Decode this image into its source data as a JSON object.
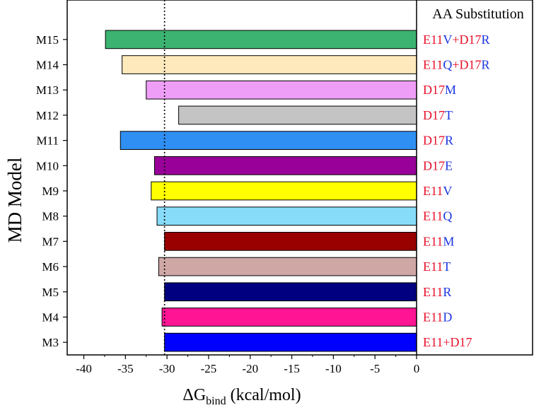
{
  "chart_data": {
    "type": "bar",
    "orientation": "horizontal",
    "ylabel": "MD Model",
    "xlabel": {
      "main": "ΔG",
      "subscript": "bind",
      "units": " (kcal/mol)"
    },
    "xlim": [
      -42,
      0
    ],
    "xticks": [
      -40,
      -35,
      -30,
      -25,
      -20,
      -15,
      -10,
      -5,
      0
    ],
    "reference_line": -30.3,
    "right_header": "AA Substitution",
    "colors": {
      "original": "#e8102a",
      "substituted": "#1b35e0"
    },
    "bars": [
      {
        "model": "M15",
        "value": -37.4,
        "color": "#3cb371",
        "sub": [
          {
            "t": "E11",
            "c": "original"
          },
          {
            "t": "V",
            "c": "substituted"
          },
          {
            "t": "+",
            "c": "original"
          },
          {
            "t": "D17",
            "c": "original"
          },
          {
            "t": "R",
            "c": "substituted"
          }
        ]
      },
      {
        "model": "M14",
        "value": -35.4,
        "color": "#fde9bc",
        "sub": [
          {
            "t": "E11",
            "c": "original"
          },
          {
            "t": "Q",
            "c": "substituted"
          },
          {
            "t": "+",
            "c": "original"
          },
          {
            "t": "D17",
            "c": "original"
          },
          {
            "t": "R",
            "c": "substituted"
          }
        ]
      },
      {
        "model": "M13",
        "value": -32.5,
        "color": "#ee9ef7",
        "sub": [
          {
            "t": "D17",
            "c": "original"
          },
          {
            "t": "M",
            "c": "substituted"
          }
        ]
      },
      {
        "model": "M12",
        "value": -28.6,
        "color": "#c4c4c4",
        "sub": [
          {
            "t": "D17",
            "c": "original"
          },
          {
            "t": "T",
            "c": "substituted"
          }
        ]
      },
      {
        "model": "M11",
        "value": -35.6,
        "color": "#2f8ff2",
        "sub": [
          {
            "t": "D17",
            "c": "original"
          },
          {
            "t": "R",
            "c": "substituted"
          }
        ]
      },
      {
        "model": "M10",
        "value": -31.5,
        "color": "#990099",
        "sub": [
          {
            "t": "D17",
            "c": "original"
          },
          {
            "t": "E",
            "c": "substituted"
          }
        ]
      },
      {
        "model": "M9",
        "value": -31.9,
        "color": "#ffff00",
        "sub": [
          {
            "t": "E11",
            "c": "original"
          },
          {
            "t": "V",
            "c": "substituted"
          }
        ]
      },
      {
        "model": "M8",
        "value": -31.2,
        "color": "#87dcfa",
        "sub": [
          {
            "t": "E11",
            "c": "original"
          },
          {
            "t": "Q",
            "c": "substituted"
          }
        ]
      },
      {
        "model": "M7",
        "value": -30.3,
        "color": "#990000",
        "sub": [
          {
            "t": "E11",
            "c": "original"
          },
          {
            "t": "M",
            "c": "substituted"
          }
        ]
      },
      {
        "model": "M6",
        "value": -31.0,
        "color": "#cfa8a6",
        "sub": [
          {
            "t": "E11",
            "c": "original"
          },
          {
            "t": "T",
            "c": "substituted"
          }
        ]
      },
      {
        "model": "M5",
        "value": -30.3,
        "color": "#000080",
        "sub": [
          {
            "t": "E11",
            "c": "original"
          },
          {
            "t": "R",
            "c": "substituted"
          }
        ]
      },
      {
        "model": "M4",
        "value": -30.6,
        "color": "#ff1493",
        "sub": [
          {
            "t": "E11",
            "c": "original"
          },
          {
            "t": "D",
            "c": "substituted"
          }
        ]
      },
      {
        "model": "M3",
        "value": -30.3,
        "color": "#0000ff",
        "sub": [
          {
            "t": "E11",
            "c": "original"
          },
          {
            "t": "+",
            "c": "original"
          },
          {
            "t": "D17",
            "c": "original"
          }
        ]
      }
    ]
  }
}
